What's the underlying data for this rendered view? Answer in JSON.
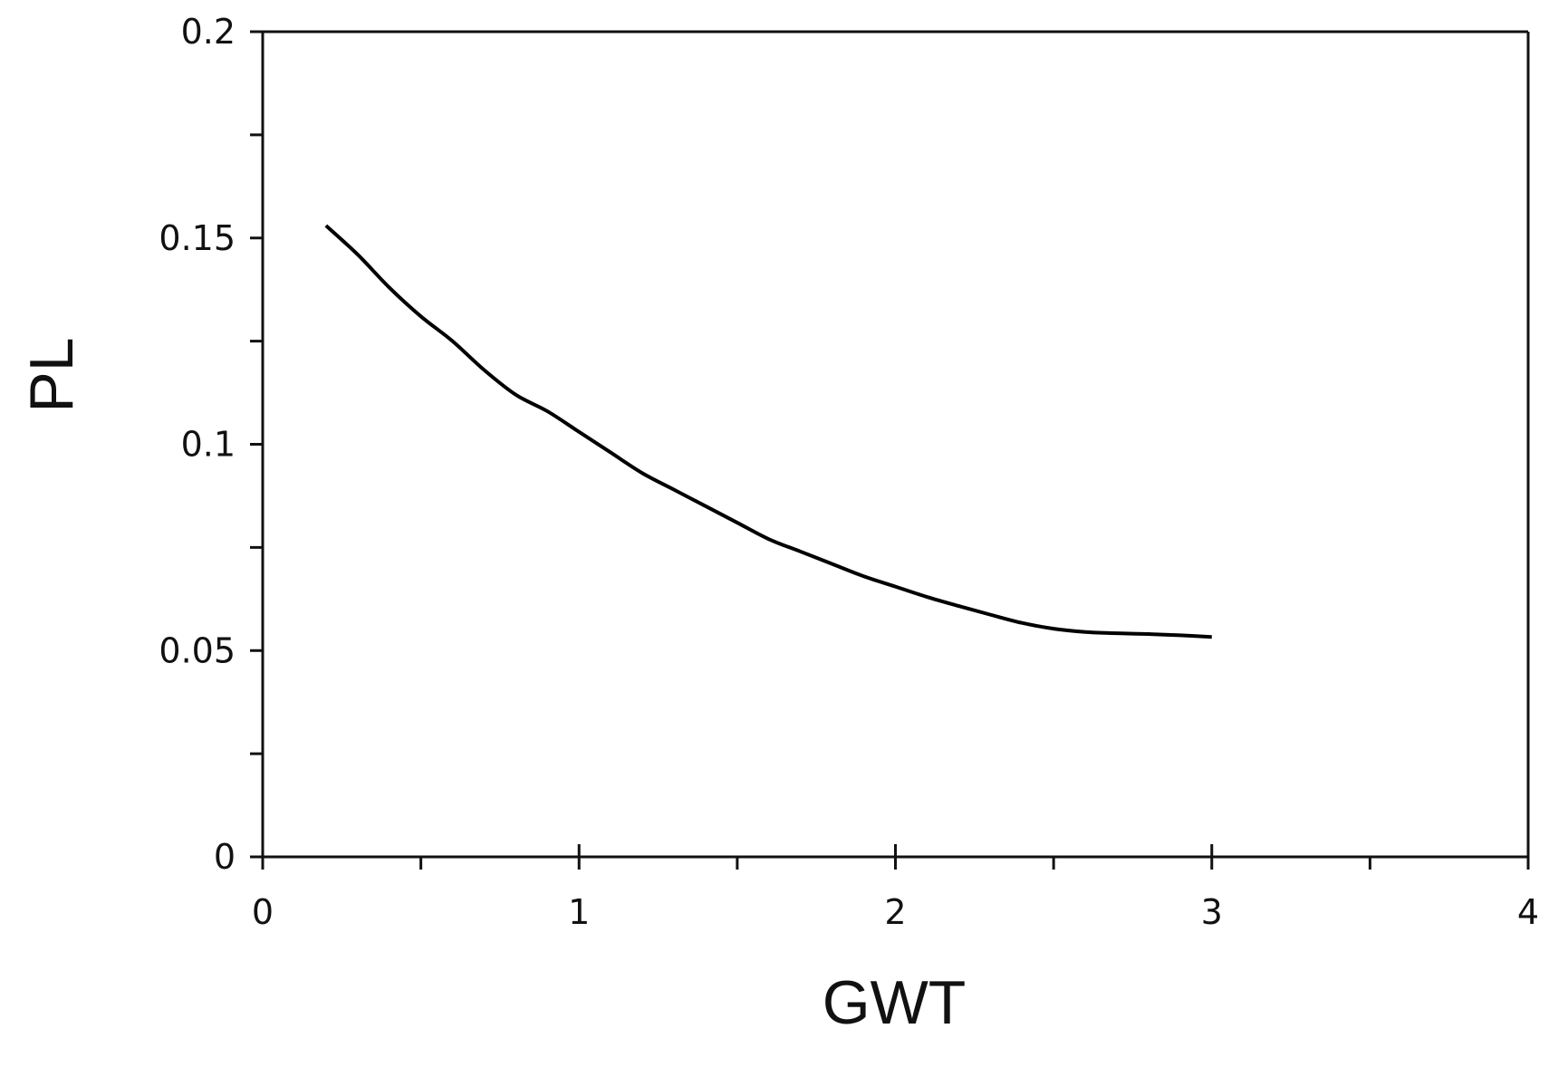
{
  "chart_data": {
    "type": "line",
    "title": "",
    "xlabel": "GWT",
    "ylabel": "PL",
    "xlim": [
      0,
      4
    ],
    "ylim": [
      0,
      0.2
    ],
    "grid": false,
    "x_ticks": [
      0,
      1,
      2,
      3,
      4
    ],
    "x_tick_labels": [
      "0",
      "1",
      "2",
      "3",
      "4"
    ],
    "y_ticks": [
      0,
      0.05,
      0.1,
      0.15,
      0.2
    ],
    "y_tick_labels": [
      "0",
      "0.05",
      "0.1",
      "0.15",
      "0.2"
    ],
    "series": [
      {
        "color": "#000000",
        "x": [
          0.2,
          0.3,
          0.4,
          0.5,
          0.6,
          0.7,
          0.8,
          0.9,
          1.0,
          1.1,
          1.2,
          1.3,
          1.4,
          1.5,
          1.6,
          1.7,
          1.8,
          1.9,
          2.0,
          2.1,
          2.2,
          2.3,
          2.4,
          2.5,
          2.6,
          2.7,
          2.8,
          2.9,
          3.0
        ],
        "y": [
          0.153,
          0.146,
          0.138,
          0.131,
          0.125,
          0.118,
          0.112,
          0.108,
          0.103,
          0.098,
          0.093,
          0.089,
          0.085,
          0.081,
          0.077,
          0.074,
          0.071,
          0.068,
          0.0655,
          0.063,
          0.0608,
          0.0587,
          0.0567,
          0.0553,
          0.0545,
          0.0542,
          0.054,
          0.0537,
          0.0533
        ]
      }
    ]
  }
}
